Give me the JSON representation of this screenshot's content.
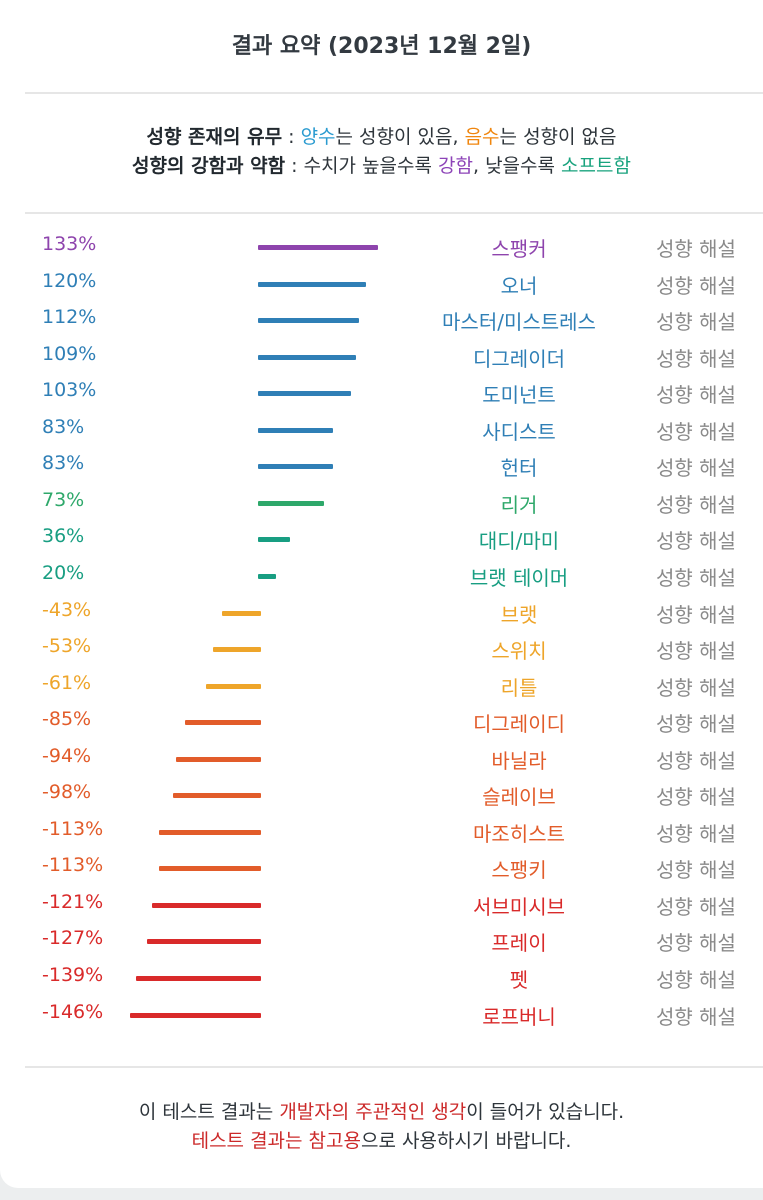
{
  "header": {
    "title": "결과 요약 (2023년 12월 2일)"
  },
  "legend": {
    "line1": {
      "label": "성향 존재의 유무",
      "sep": " : ",
      "positive": "양수",
      "text1": "는 성향이 있음, ",
      "negative": "음수",
      "text2": "는 성향이 없음"
    },
    "line2": {
      "label": "성향의 강함과 약함",
      "sep": " : ",
      "text1": "수치가 높을수록 ",
      "strong": "강함",
      "text2": ", 낮을수록 ",
      "soft": "소프트함"
    },
    "colors": {
      "positive": "#2a9bd0",
      "negative": "#f0860e",
      "strong": "#8d44b8",
      "soft": "#19a37e"
    }
  },
  "results": {
    "explain_label": "성향 해설",
    "items": [
      {
        "percent_label": "133%",
        "value": 133,
        "name": "스팽커",
        "color": "#8e44ad"
      },
      {
        "percent_label": "120%",
        "value": 120,
        "name": "오너",
        "color": "#2f7fb6"
      },
      {
        "percent_label": "112%",
        "value": 112,
        "name": "마스터/미스트레스",
        "color": "#2f7fb6"
      },
      {
        "percent_label": "109%",
        "value": 109,
        "name": "디그레이더",
        "color": "#2f7fb6"
      },
      {
        "percent_label": "103%",
        "value": 103,
        "name": "도미넌트",
        "color": "#2f7fb6"
      },
      {
        "percent_label": "83%",
        "value": 83,
        "name": "사디스트",
        "color": "#2f7fb6"
      },
      {
        "percent_label": "83%",
        "value": 83,
        "name": "헌터",
        "color": "#2f7fb6"
      },
      {
        "percent_label": "73%",
        "value": 73,
        "name": "리거",
        "color": "#2ea86a"
      },
      {
        "percent_label": "36%",
        "value": 36,
        "name": "대디/마미",
        "color": "#189e82"
      },
      {
        "percent_label": "20%",
        "value": 20,
        "name": "브랫 테이머",
        "color": "#189e82"
      },
      {
        "percent_label": "-43%",
        "value": -43,
        "name": "브랫",
        "color": "#eea52a"
      },
      {
        "percent_label": "-53%",
        "value": -53,
        "name": "스위치",
        "color": "#eea52a"
      },
      {
        "percent_label": "-61%",
        "value": -61,
        "name": "리틀",
        "color": "#eea52a"
      },
      {
        "percent_label": "-85%",
        "value": -85,
        "name": "디그레이디",
        "color": "#e25c2a"
      },
      {
        "percent_label": "-94%",
        "value": -94,
        "name": "바닐라",
        "color": "#e25c2a"
      },
      {
        "percent_label": "-98%",
        "value": -98,
        "name": "슬레이브",
        "color": "#e25c2a"
      },
      {
        "percent_label": "-113%",
        "value": -113,
        "name": "마조히스트",
        "color": "#e25c2a"
      },
      {
        "percent_label": "-113%",
        "value": -113,
        "name": "스팽키",
        "color": "#e25c2a"
      },
      {
        "percent_label": "-121%",
        "value": -121,
        "name": "서브미시브",
        "color": "#d92a2a"
      },
      {
        "percent_label": "-127%",
        "value": -127,
        "name": "프레이",
        "color": "#d92a2a"
      },
      {
        "percent_label": "-139%",
        "value": -139,
        "name": "펫",
        "color": "#d92a2a"
      },
      {
        "percent_label": "-146%",
        "value": -146,
        "name": "로프버니",
        "color": "#d92a2a"
      }
    ]
  },
  "footer": {
    "line1": {
      "text1": "이 테스트 결과는 ",
      "highlight": "개발자의 주관적인 생각",
      "text2": "이 들어가 있습니다."
    },
    "line2": {
      "highlight": "테스트 결과는 참고용",
      "text": "으로 사용하시기 바랍니다."
    },
    "highlight_color": "#cc2a2a"
  }
}
